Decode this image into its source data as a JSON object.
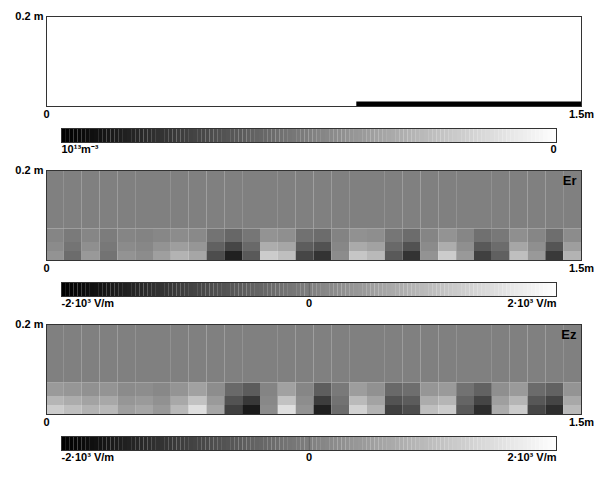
{
  "chart_data": [
    {
      "type": "heatmap",
      "xlim": [
        0,
        1.5
      ],
      "ylim": [
        0,
        0.2
      ],
      "xticks": [
        0,
        {
          "value": 1.5,
          "label": "1.5m"
        }
      ],
      "yticks": [
        {
          "value": 0.2,
          "label": "0.2 m"
        }
      ],
      "cells": [
        {
          "x1": 0.87,
          "x2": 1.5,
          "y1": 0,
          "y2": 0.01,
          "value": 10000000000000
        }
      ],
      "colorbar": {
        "range": [
          10000000000000,
          0
        ],
        "ticks": [
          {
            "value": 10000000000000,
            "label": "10¹³m⁻³"
          },
          0
        ]
      }
    },
    {
      "type": "heatmap",
      "title": "Er",
      "xlim": [
        0,
        1.5
      ],
      "ylim": [
        0,
        0.2
      ],
      "xticks": [
        0,
        {
          "value": 1.5,
          "label": "1.5m"
        }
      ],
      "yticks": [
        {
          "value": 0.2,
          "label": "0.2 m"
        }
      ],
      "x_edges": [
        0,
        0.05,
        0.1,
        0.15,
        0.2,
        0.25,
        0.3,
        0.35,
        0.4,
        0.45,
        0.5,
        0.55,
        0.6,
        0.65,
        0.7,
        0.75,
        0.8,
        0.85,
        0.9,
        0.95,
        1,
        1.05,
        1.1,
        1.15,
        1.2,
        1.25,
        1.3,
        1.35,
        1.4,
        1.45,
        1.5
      ],
      "y_edges": [
        0,
        0.02,
        0.04,
        0.07,
        0.2
      ],
      "values": [
        [
          300,
          -300,
          400,
          -200,
          300,
          200,
          500,
          800,
          600,
          -800,
          -1500,
          -600,
          1200,
          1000,
          -900,
          -1200,
          200,
          1100,
          900,
          -600,
          -1200,
          300,
          1200,
          400,
          -1000,
          -500,
          1000,
          400,
          -1100,
          800
        ],
        [
          180,
          -180,
          240,
          -120,
          180,
          120,
          300,
          480,
          360,
          -480,
          -900,
          -360,
          720,
          600,
          -540,
          -720,
          120,
          660,
          540,
          -360,
          -720,
          180,
          720,
          240,
          -600,
          -300,
          600,
          240,
          -660,
          480
        ],
        [
          80,
          -80,
          100,
          -50,
          80,
          50,
          120,
          200,
          150,
          -200,
          -380,
          -150,
          300,
          250,
          -220,
          -300,
          50,
          280,
          220,
          -150,
          -300,
          80,
          300,
          100,
          -250,
          -120,
          250,
          100,
          -280,
          200
        ],
        [
          0,
          0,
          0,
          0,
          0,
          0,
          0,
          0,
          0,
          0,
          0,
          0,
          0,
          0,
          0,
          0,
          0,
          0,
          0,
          0,
          0,
          0,
          0,
          0,
          0,
          0,
          0,
          0,
          0,
          0
        ]
      ],
      "colorbar": {
        "range": [
          -2000,
          2000
        ],
        "ticks": [
          {
            "value": -2000,
            "label": "-2·10³ V/m"
          },
          0,
          {
            "value": 2000,
            "label": "2·10³ V/m"
          }
        ]
      }
    },
    {
      "type": "heatmap",
      "title": "Ez",
      "xlim": [
        0,
        1.5
      ],
      "ylim": [
        0,
        0.2
      ],
      "xticks": [
        0,
        {
          "value": 1.5,
          "label": "1.5m"
        }
      ],
      "yticks": [
        {
          "value": 0.2,
          "label": "0.2 m"
        }
      ],
      "x_edges": [
        0,
        0.05,
        0.1,
        0.15,
        0.2,
        0.25,
        0.3,
        0.35,
        0.4,
        0.45,
        0.5,
        0.55,
        0.6,
        0.65,
        0.7,
        0.75,
        0.8,
        0.85,
        0.9,
        0.95,
        1,
        1.05,
        1.1,
        1.15,
        1.2,
        1.25,
        1.3,
        1.35,
        1.4,
        1.45,
        1.5
      ],
      "y_edges": [
        0,
        0.02,
        0.04,
        0.07,
        0.2
      ],
      "values": [
        [
          1200,
          1000,
          800,
          900,
          500,
          600,
          400,
          900,
          1500,
          600,
          -1000,
          -1600,
          200,
          1500,
          300,
          -1500,
          -300,
          1300,
          800,
          -1000,
          -800,
          1000,
          1200,
          -600,
          -1300,
          700,
          1200,
          -900,
          -1300,
          900
        ],
        [
          840,
          700,
          560,
          630,
          350,
          420,
          280,
          630,
          1050,
          420,
          -700,
          -1120,
          140,
          1050,
          210,
          -1050,
          -210,
          910,
          560,
          -700,
          -560,
          700,
          840,
          -420,
          -910,
          490,
          840,
          -630,
          -910,
          630
        ],
        [
          420,
          350,
          280,
          320,
          180,
          210,
          140,
          320,
          520,
          210,
          -350,
          -560,
          70,
          520,
          100,
          -520,
          -100,
          460,
          280,
          -350,
          -280,
          350,
          420,
          -210,
          -460,
          240,
          420,
          -320,
          -460,
          320
        ],
        [
          0,
          0,
          0,
          0,
          0,
          0,
          0,
          0,
          0,
          0,
          0,
          0,
          0,
          0,
          0,
          0,
          0,
          0,
          0,
          0,
          0,
          0,
          0,
          0,
          0,
          0,
          0,
          0,
          0,
          0
        ]
      ],
      "colorbar": {
        "range": [
          -2000,
          2000
        ],
        "ticks": [
          {
            "value": -2000,
            "label": "-2·10³ V/m"
          },
          0,
          {
            "value": 2000,
            "label": "2·10³ V/m"
          }
        ]
      }
    }
  ]
}
